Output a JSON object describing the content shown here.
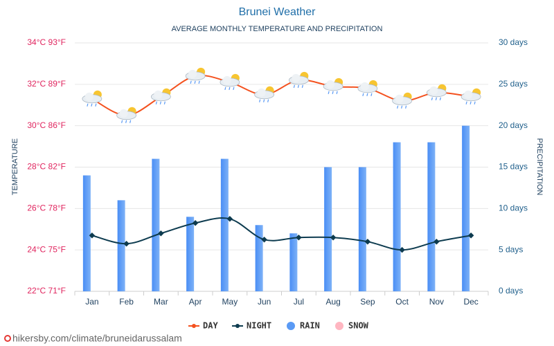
{
  "chart_data": {
    "type": "line",
    "title": "Brunei Weather",
    "subtitle": "AVERAGE MONTHLY TEMPERATURE AND PRECIPITATION",
    "y_label": "TEMPERATURE",
    "y2_label": "PRECIPITATION",
    "source": "hikersby.com/climate/bruneidarussalam",
    "categories": [
      "Jan",
      "Feb",
      "Mar",
      "Apr",
      "May",
      "Jun",
      "Jul",
      "Aug",
      "Sep",
      "Oct",
      "Nov",
      "Dec"
    ],
    "ylim": [
      22,
      34
    ],
    "yticks": [
      {
        "value": 22,
        "label": "22°C 71°F"
      },
      {
        "value": 24,
        "label": "24°C 75°F"
      },
      {
        "value": 26,
        "label": "26°C 78°F"
      },
      {
        "value": 28,
        "label": "28°C 82°F"
      },
      {
        "value": 30,
        "label": "30°C 86°F"
      },
      {
        "value": 32,
        "label": "32°C 89°F"
      },
      {
        "value": 34,
        "label": "34°C 93°F"
      }
    ],
    "y2lim": [
      0,
      30
    ],
    "y2ticks": [
      {
        "value": 0,
        "label": "0 days"
      },
      {
        "value": 5,
        "label": "5 days"
      },
      {
        "value": 10,
        "label": "10 days"
      },
      {
        "value": 15,
        "label": "15 days"
      },
      {
        "value": 20,
        "label": "20 days"
      },
      {
        "value": 25,
        "label": "25 days"
      },
      {
        "value": 30,
        "label": "30 days"
      }
    ],
    "grid": true,
    "series": [
      {
        "name": "DAY",
        "type": "line",
        "color": "#f4511e",
        "values": [
          31.3,
          30.5,
          31.4,
          32.4,
          32.1,
          31.5,
          32.2,
          31.9,
          31.8,
          31.2,
          31.6,
          31.4
        ]
      },
      {
        "name": "NIGHT",
        "type": "line",
        "color": "#0d3b4f",
        "values": [
          24.7,
          24.3,
          24.8,
          25.3,
          25.5,
          24.5,
          24.6,
          24.6,
          24.4,
          24.0,
          24.4,
          24.7
        ]
      },
      {
        "name": "RAIN",
        "type": "bar",
        "axis": "y2",
        "color": "#5a9af5",
        "values": [
          14,
          11,
          16,
          9,
          16,
          8,
          7,
          15,
          15,
          18,
          18,
          20
        ]
      },
      {
        "name": "SNOW",
        "type": "bar",
        "axis": "y2",
        "color": "#ffb6c1",
        "values": [
          null,
          null,
          null,
          null,
          null,
          null,
          null,
          null,
          null,
          null,
          null,
          null
        ]
      }
    ]
  }
}
